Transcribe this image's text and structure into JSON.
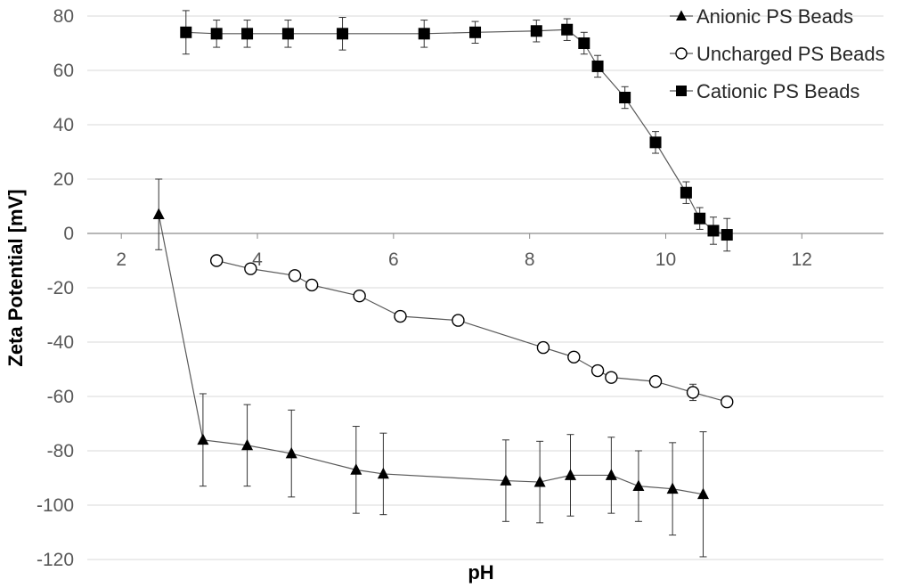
{
  "chart_data": {
    "type": "scatter",
    "title": "",
    "xlabel": "pH",
    "ylabel": "Zeta Potential [mV]",
    "xlim": [
      1.5,
      13.2
    ],
    "ylim": [
      -120,
      80
    ],
    "xticks": [
      2,
      4,
      6,
      8,
      10,
      12
    ],
    "yticks": [
      80,
      60,
      40,
      20,
      0,
      -20,
      -40,
      -60,
      -80,
      -100,
      -120
    ],
    "grid": true,
    "legend_position": "top-right",
    "series": [
      {
        "name": "Anionic PS Beads",
        "marker": "triangle",
        "x": [
          2.55,
          3.2,
          3.85,
          4.5,
          5.45,
          5.85,
          7.65,
          8.15,
          8.6,
          9.2,
          9.6,
          10.1,
          10.55
        ],
        "y": [
          7,
          -76,
          -78,
          -81,
          -87,
          -88.5,
          -91,
          -91.5,
          -89,
          -89,
          -93,
          -94,
          -96
        ],
        "err": [
          13,
          17,
          15,
          16,
          16,
          15,
          15,
          15,
          15,
          14,
          13,
          17,
          23
        ]
      },
      {
        "name": "Uncharged PS Beads",
        "marker": "circle-open",
        "x": [
          3.4,
          3.9,
          4.55,
          4.8,
          5.5,
          6.1,
          6.95,
          8.2,
          8.65,
          9.0,
          9.2,
          9.85,
          10.4,
          10.9
        ],
        "y": [
          -10,
          -13,
          -15.5,
          -19,
          -23,
          -30.5,
          -32,
          -42,
          -45.5,
          -50.5,
          -53,
          -54.5,
          -58.5,
          -62
        ],
        "err": [
          1,
          1.5,
          1,
          1,
          1,
          1,
          1,
          1.5,
          1,
          1.5,
          1,
          1,
          3,
          1
        ]
      },
      {
        "name": "Cationic PS Beads",
        "marker": "square",
        "x": [
          2.95,
          3.4,
          3.85,
          4.45,
          5.25,
          6.45,
          7.2,
          8.1,
          8.55,
          8.8,
          9.0,
          9.4,
          9.85,
          10.3,
          10.5,
          10.7,
          10.9
        ],
        "y": [
          74,
          73.5,
          73.5,
          73.5,
          73.5,
          73.5,
          74,
          74.5,
          75,
          70,
          61.5,
          50,
          33.5,
          15,
          5.5,
          1,
          -0.5
        ],
        "err": [
          8,
          5,
          5,
          5,
          6,
          5,
          4,
          4,
          4,
          4,
          4,
          4,
          4,
          4,
          4,
          5,
          6
        ]
      }
    ]
  }
}
